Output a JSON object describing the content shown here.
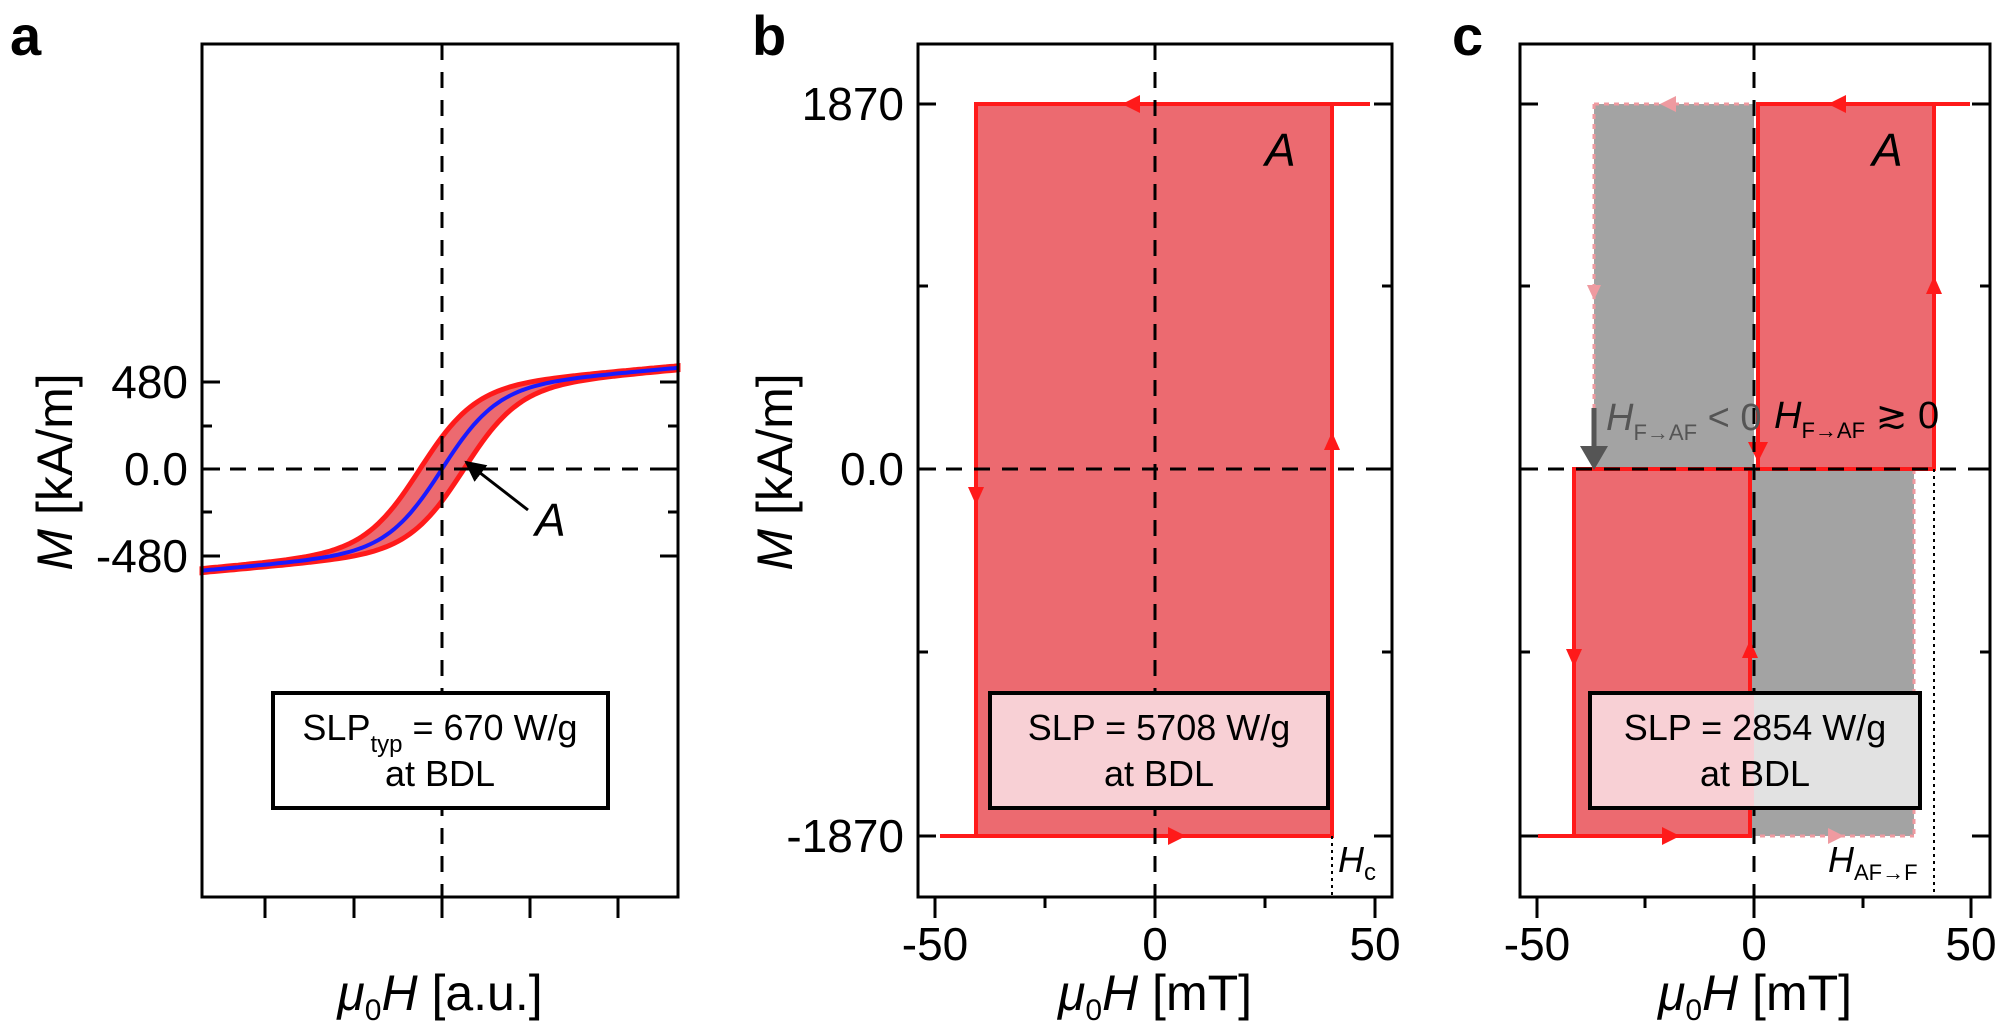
{
  "panels": {
    "a": {
      "label": "a",
      "ylabel_var": "M",
      "ylabel_unit": " [kA/m]",
      "xlabel_var": "μ",
      "xlabel_sub": "0",
      "xlabel_var2": "H",
      "xlabel_unit": " [a.u.]",
      "annotation": "A",
      "box_line1_main": "SLP",
      "box_line1_sub": "typ",
      "box_line1_rest": " = 670 W/g",
      "box_line2": "at BDL",
      "yticks": [
        "480",
        "0.0",
        "-480"
      ]
    },
    "b": {
      "label": "b",
      "ylabel_var": "M",
      "ylabel_unit": " [kA/m]",
      "xlabel_var": "μ",
      "xlabel_sub": "0",
      "xlabel_var2": "H",
      "xlabel_unit": " [mT]",
      "annotation": "A",
      "hc_main": "H",
      "hc_sub": "c",
      "box_line1": "SLP = 5708 W/g",
      "box_line2": "at BDL",
      "yticks": [
        "1870",
        "0.0",
        "-1870"
      ],
      "xticks": [
        "-50",
        "0",
        "50"
      ]
    },
    "c": {
      "label": "c",
      "xlabel_var": "μ",
      "xlabel_sub": "0",
      "xlabel_var2": "H",
      "xlabel_unit": " [mT]",
      "annotation": "A",
      "h1_main": "H",
      "h1_sub": "F→AF",
      "h1_rest": " < 0",
      "h2_main": "H",
      "h2_sub": "F→AF",
      "h2_rest": " ≳ 0",
      "h3_main": "H",
      "h3_sub": "AF→F",
      "box_line1": "SLP = 2854 W/g",
      "box_line2": "at BDL",
      "xticks": [
        "-50",
        "0",
        "50"
      ]
    }
  },
  "colors": {
    "loop_red": "#ff1a1a",
    "fill_red": "#ec6a70",
    "fill_gray": "#a3a3a3",
    "curve_blue": "#1a1aff",
    "box_pink": "#f8d0d5",
    "box_gray": "#e2e2e2"
  },
  "chart_data": [
    {
      "panel": "a",
      "type": "line",
      "xlabel": "μ0H [a.u.]",
      "ylabel": "M [kA/m]",
      "yticks": [
        480,
        0,
        -480
      ],
      "series": [
        {
          "role": "hysteresis loop (red), enclosed area A",
          "kind": "loop"
        },
        {
          "role": "anhysteretic curve (blue)",
          "kind": "curve"
        }
      ],
      "annotation": "SLPtyp = 670 W/g at BDL"
    },
    {
      "panel": "b",
      "type": "line",
      "xlabel": "μ0H [mT]",
      "ylabel": "M [kA/m]",
      "xlim": [
        -50,
        50
      ],
      "ylim": [
        -1870,
        1870
      ],
      "xticks": [
        -50,
        0,
        50
      ],
      "yticks": [
        1870,
        0,
        -1870
      ],
      "loop": {
        "Hc": 40,
        "Ms": 1870,
        "H_max": 48
      },
      "annotation": "SLP = 5708 W/g at BDL"
    },
    {
      "panel": "c",
      "type": "line",
      "xlabel": "μ0H [mT]",
      "ylabel": "M [kA/m]",
      "xlim": [
        -50,
        50
      ],
      "ylim": [
        -1870,
        1870
      ],
      "xticks": [
        -50,
        0,
        50
      ],
      "loops": [
        {
          "name": "upper loop",
          "H_F_AF": 0,
          "H_AF_F": 40,
          "M": [
            0,
            1870
          ]
        },
        {
          "name": "lower loop",
          "H_F_AF": 0,
          "H_AF_F": -40,
          "M": [
            -1870,
            0
          ]
        },
        {
          "name": "gray (H_F→AF < 0)",
          "H_F_AF": -36,
          "H_AF_F": 36
        }
      ],
      "annotation": "SLP = 2854 W/g at BDL"
    }
  ]
}
